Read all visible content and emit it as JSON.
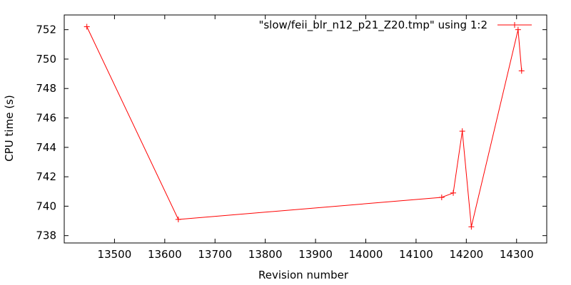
{
  "chart_data": {
    "type": "line",
    "xlabel": "Revision number",
    "ylabel": "CPU time (s)",
    "xlim": [
      13400,
      14360
    ],
    "ylim": [
      737.5,
      753
    ],
    "x_ticks": [
      13500,
      13600,
      13700,
      13800,
      13900,
      14000,
      14100,
      14200,
      14300
    ],
    "y_ticks": [
      738,
      740,
      742,
      744,
      746,
      748,
      750,
      752
    ],
    "grid": false,
    "legend_position": "top-right",
    "series": [
      {
        "name": "\"slow/feii_blr_n12_p21_Z20.tmp\" using 1:2",
        "color": "#ff0000",
        "marker": "plus",
        "points": [
          {
            "x": 13445,
            "y": 752.2
          },
          {
            "x": 13627,
            "y": 739.1
          },
          {
            "x": 14151,
            "y": 740.6
          },
          {
            "x": 14174,
            "y": 740.9
          },
          {
            "x": 14192,
            "y": 745.1
          },
          {
            "x": 14210,
            "y": 738.6
          },
          {
            "x": 14303,
            "y": 752.0
          },
          {
            "x": 14310,
            "y": 749.2
          }
        ]
      }
    ]
  }
}
